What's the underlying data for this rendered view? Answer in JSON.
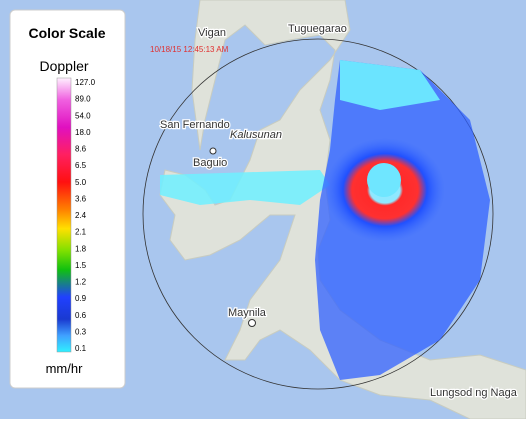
{
  "legend": {
    "title": "Color Scale",
    "product": "Doppler",
    "labels": [
      "127.0",
      "89.0",
      "54.0",
      "18.0",
      "8.6",
      "6.5",
      "5.0",
      "3.6",
      "2.4",
      "2.1",
      "1.8",
      "1.5",
      "1.2",
      "0.9",
      "0.6",
      "0.3",
      "0.1"
    ],
    "unit": "mm/hr"
  },
  "map": {
    "timestamp": "10/18/15 12:45:13 AM",
    "places": [
      "Vigan",
      "Tuguegarao",
      "San Fernando",
      "Kalusunan",
      "Baguio",
      "Maynila",
      "Lungsod ng Naga"
    ]
  }
}
